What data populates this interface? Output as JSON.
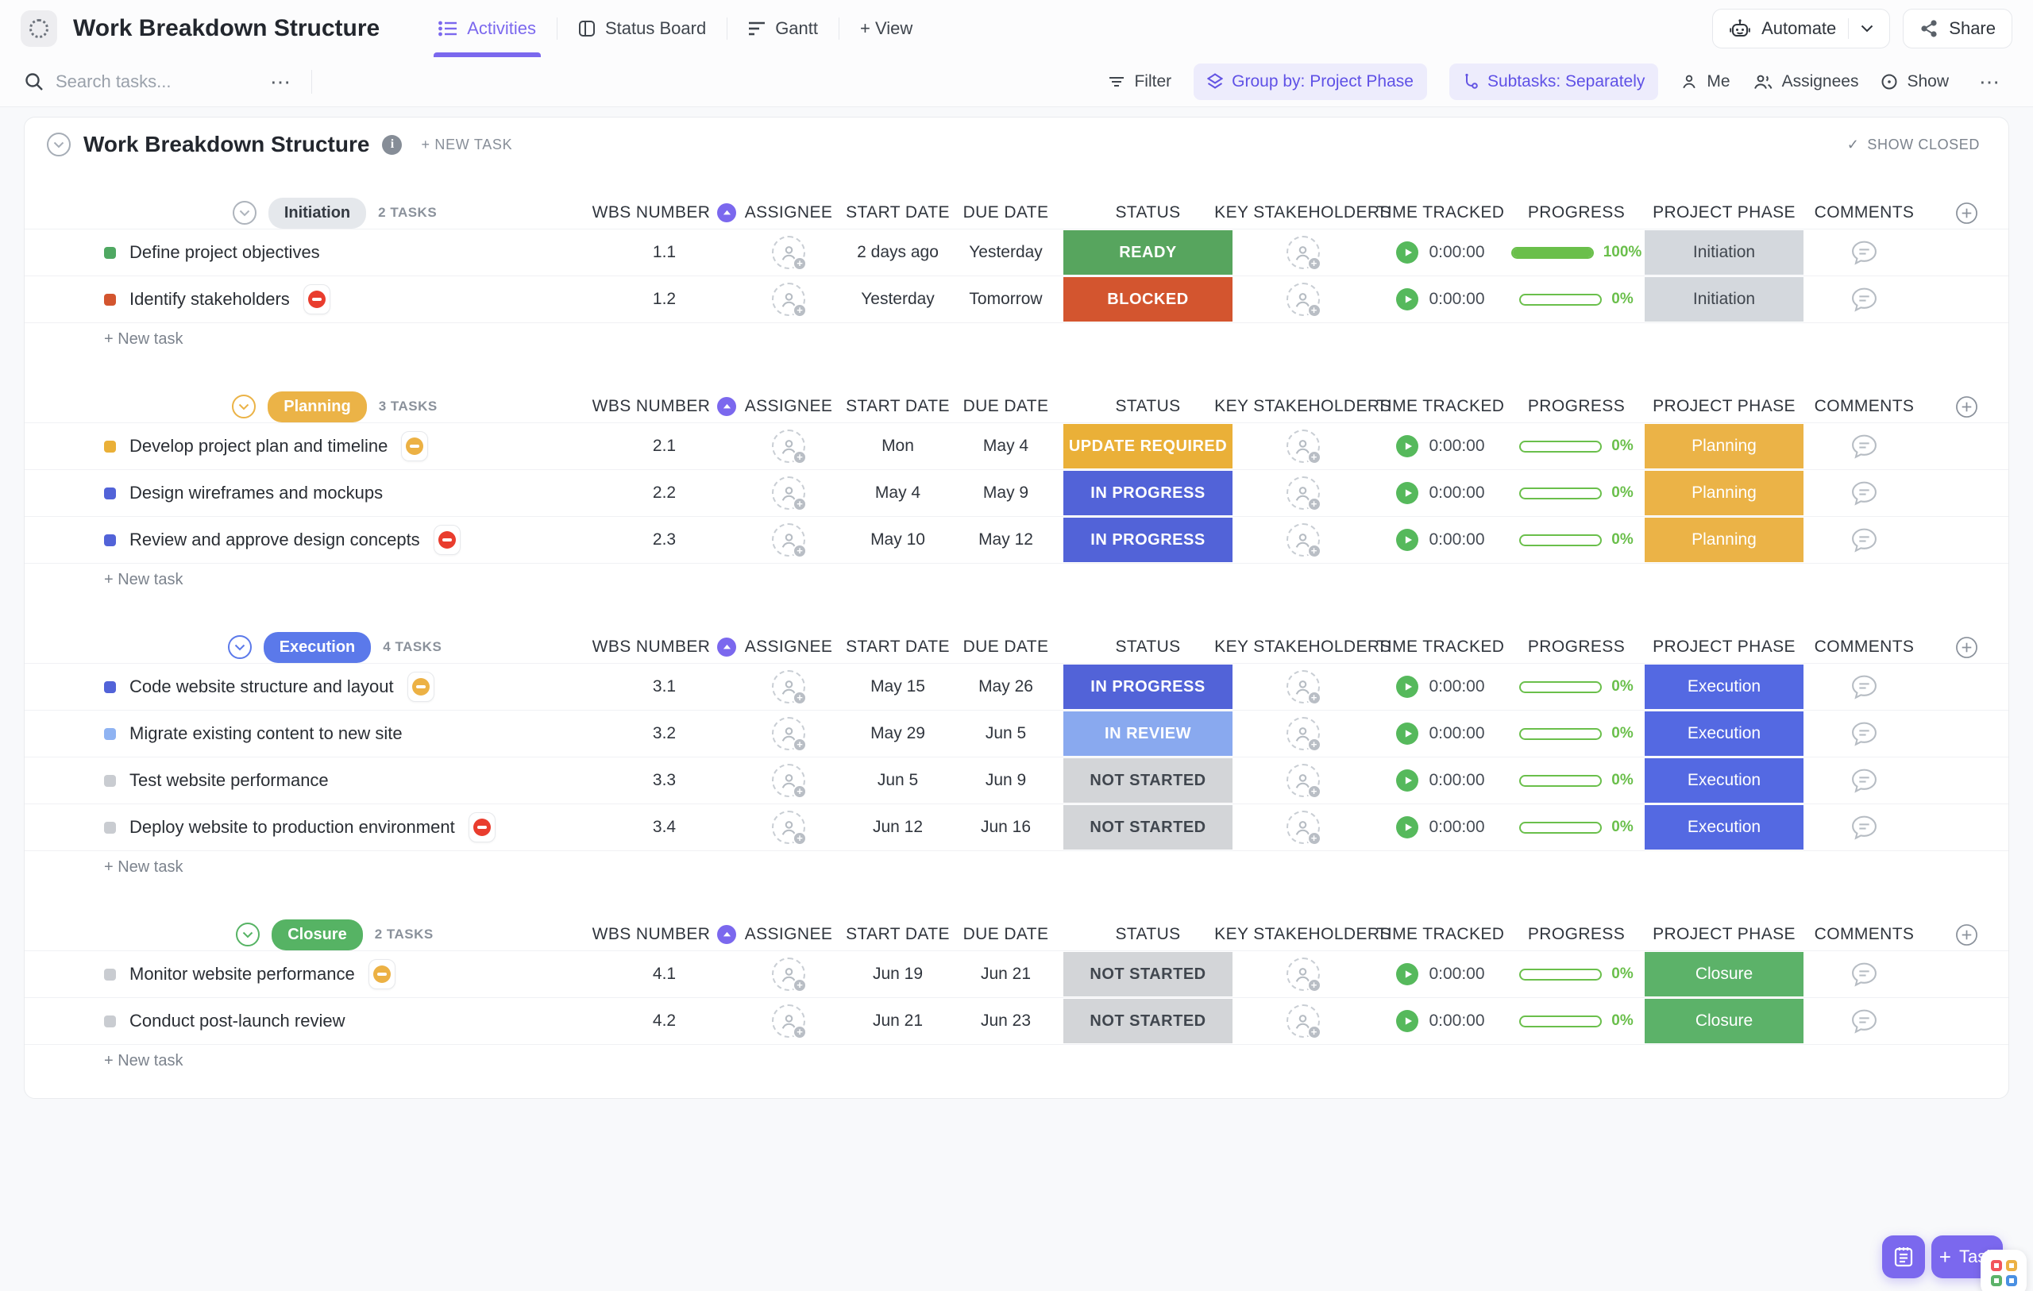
{
  "icons": {
    "ellipsis": "⋯",
    "check": "✓",
    "plus": "+",
    "info": "i"
  },
  "header": {
    "title": "Work Breakdown Structure",
    "accent": "#7b68ee",
    "tabs": [
      {
        "label": "Activities"
      },
      {
        "label": "Status Board"
      },
      {
        "label": "Gantt"
      }
    ],
    "add_view_label": "+ View",
    "automate_label": "Automate",
    "share_label": "Share"
  },
  "toolbar": {
    "search_placeholder": "Search tasks...",
    "filter_label": "Filter",
    "group_by_label": "Group by: Project Phase",
    "subtasks_label": "Subtasks: Separately",
    "me_label": "Me",
    "assignees_label": "Assignees",
    "show_label": "Show"
  },
  "content": {
    "title": "Work Breakdown Structure",
    "new_task_label": "+ NEW TASK",
    "show_closed_label": "SHOW CLOSED",
    "new_task_row_label": "+ New task",
    "columns": [
      "WBS NUMBER",
      "ASSIGNEE",
      "START DATE",
      "DUE DATE",
      "STATUS",
      "KEY STAKEHOLDERS",
      "TIME TRACKED",
      "PROGRESS",
      "PROJECT PHASE",
      "COMMENTS"
    ],
    "groups": [
      {
        "name": "Initiation",
        "count_label": "2 TASKS",
        "pill_bg": "#e5e8ec",
        "pill_color": "#343a42",
        "chevron_color": "#aeb4bc",
        "tasks": [
          {
            "name": "Define project objectives",
            "bullet_color": "#4fa862",
            "wbs": "1.1",
            "start": "2 days ago",
            "due": "Yesterday",
            "status": "READY",
            "status_bg": "#57a55e",
            "status_color": "#ffffff",
            "time": "0:00:00",
            "progress": 100,
            "progress_label": "100%",
            "phase": "Initiation",
            "phase_bg": "#d4d8dd",
            "phase_color": "#40464e"
          },
          {
            "name": "Identify stakeholders",
            "bullet_color": "#d3552f",
            "flag_color": "#e93d2e",
            "wbs": "1.2",
            "start": "Yesterday",
            "due": "Tomorrow",
            "status": "BLOCKED",
            "status_bg": "#d3552f",
            "status_color": "#ffffff",
            "time": "0:00:00",
            "progress": 0,
            "progress_label": "0%",
            "phase": "Initiation",
            "phase_bg": "#d4d8dd",
            "phase_color": "#40464e"
          }
        ]
      },
      {
        "name": "Planning",
        "count_label": "3 TASKS",
        "pill_bg": "#ebb347",
        "pill_color": "#ffffff",
        "chevron_color": "#ebb347",
        "tasks": [
          {
            "name": "Develop project plan and timeline",
            "bullet_color": "#eab038",
            "flag_color": "#ecb144",
            "wbs": "2.1",
            "start": "Mon",
            "due": "May 4",
            "status": "UPDATE REQUIRED",
            "status_bg": "#eab038",
            "status_color": "#ffffff",
            "time": "0:00:00",
            "progress": 0,
            "progress_label": "0%",
            "phase": "Planning",
            "phase_bg": "#ebb347",
            "phase_color": "#ffffff"
          },
          {
            "name": "Design wireframes and mockups",
            "bullet_color": "#5263d8",
            "wbs": "2.2",
            "start": "May 4",
            "due": "May 9",
            "status": "IN PROGRESS",
            "status_bg": "#5263d8",
            "status_color": "#ffffff",
            "time": "0:00:00",
            "progress": 0,
            "progress_label": "0%",
            "phase": "Planning",
            "phase_bg": "#ebb347",
            "phase_color": "#ffffff"
          },
          {
            "name": "Review and approve design concepts",
            "bullet_color": "#5263d8",
            "flag_color": "#e93d2e",
            "wbs": "2.3",
            "start": "May 10",
            "due": "May 12",
            "status": "IN PROGRESS",
            "status_bg": "#5263d8",
            "status_color": "#ffffff",
            "time": "0:00:00",
            "progress": 0,
            "progress_label": "0%",
            "phase": "Planning",
            "phase_bg": "#ebb347",
            "phase_color": "#ffffff"
          }
        ]
      },
      {
        "name": "Execution",
        "count_label": "4 TASKS",
        "pill_bg": "#5b79ea",
        "pill_color": "#ffffff",
        "chevron_color": "#5b79ea",
        "tasks": [
          {
            "name": "Code website structure and layout",
            "bullet_color": "#5263d8",
            "flag_color": "#ecb144",
            "wbs": "3.1",
            "start": "May 15",
            "due": "May 26",
            "status": "IN PROGRESS",
            "status_bg": "#5263d8",
            "status_color": "#ffffff",
            "time": "0:00:00",
            "progress": 0,
            "progress_label": "0%",
            "phase": "Execution",
            "phase_bg": "#5469e2",
            "phase_color": "#ffffff"
          },
          {
            "name": "Migrate existing content to new site",
            "bullet_color": "#8fb3f2",
            "wbs": "3.2",
            "start": "May 29",
            "due": "Jun 5",
            "status": "IN REVIEW",
            "status_bg": "#89a9ef",
            "status_color": "#ffffff",
            "time": "0:00:00",
            "progress": 0,
            "progress_label": "0%",
            "phase": "Execution",
            "phase_bg": "#5469e2",
            "phase_color": "#ffffff"
          },
          {
            "name": "Test website performance",
            "bullet_color": "#c9ccd1",
            "wbs": "3.3",
            "start": "Jun 5",
            "due": "Jun 9",
            "status": "NOT STARTED",
            "status_bg": "#d3d5d8",
            "status_color": "#40464e",
            "time": "0:00:00",
            "progress": 0,
            "progress_label": "0%",
            "phase": "Execution",
            "phase_bg": "#5469e2",
            "phase_color": "#ffffff"
          },
          {
            "name": "Deploy website to production environment",
            "bullet_color": "#c9ccd1",
            "flag_color": "#e93d2e",
            "wbs": "3.4",
            "start": "Jun 12",
            "due": "Jun 16",
            "status": "NOT STARTED",
            "status_bg": "#d3d5d8",
            "status_color": "#40464e",
            "time": "0:00:00",
            "progress": 0,
            "progress_label": "0%",
            "phase": "Execution",
            "phase_bg": "#5469e2",
            "phase_color": "#ffffff"
          }
        ]
      },
      {
        "name": "Closure",
        "count_label": "2 TASKS",
        "pill_bg": "#56b364",
        "pill_color": "#ffffff",
        "chevron_color": "#56b364",
        "tasks": [
          {
            "name": "Monitor website performance",
            "bullet_color": "#c9ccd1",
            "flag_color": "#ecb144",
            "wbs": "4.1",
            "start": "Jun 19",
            "due": "Jun 21",
            "status": "NOT STARTED",
            "status_bg": "#d3d5d8",
            "status_color": "#40464e",
            "time": "0:00:00",
            "progress": 0,
            "progress_label": "0%",
            "phase": "Closure",
            "phase_bg": "#5cb269",
            "phase_color": "#ffffff"
          },
          {
            "name": "Conduct post-launch review",
            "bullet_color": "#c9ccd1",
            "wbs": "4.2",
            "start": "Jun 21",
            "due": "Jun 23",
            "status": "NOT STARTED",
            "status_bg": "#d3d5d8",
            "status_color": "#40464e",
            "time": "0:00:00",
            "progress": 0,
            "progress_label": "0%",
            "phase": "Closure",
            "phase_bg": "#5cb269",
            "phase_color": "#ffffff"
          }
        ]
      }
    ]
  },
  "fab": {
    "task_label": "Task"
  }
}
